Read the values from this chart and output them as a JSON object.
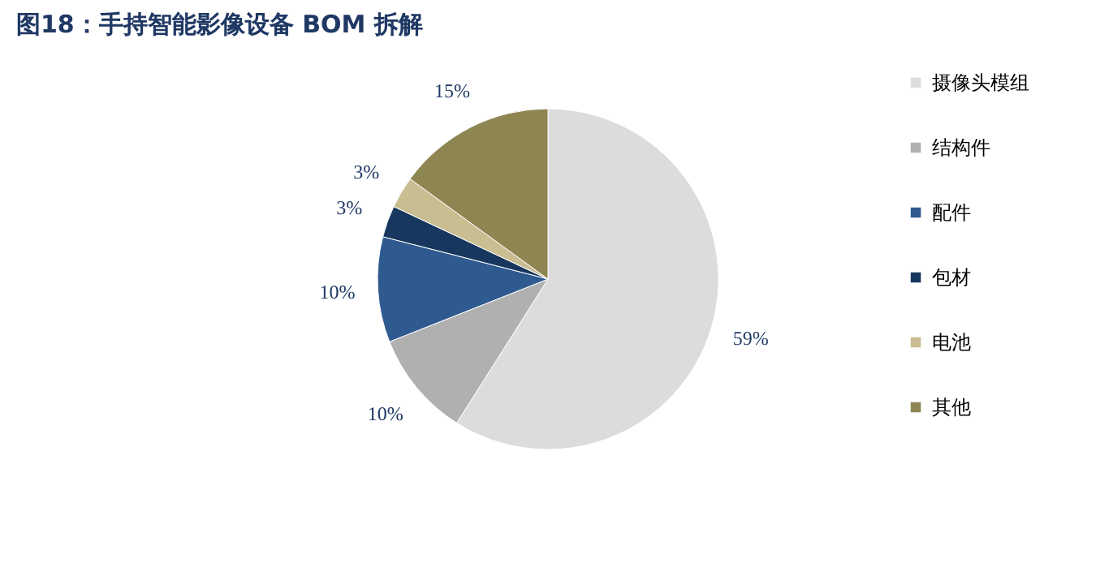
{
  "chart_data": {
    "type": "pie",
    "title": "图18：手持智能影像设备 BOM 拆解",
    "categories": [
      "摄像头模组",
      "结构件",
      "配件",
      "包材",
      "电池",
      "其他"
    ],
    "values": [
      59,
      10,
      10,
      3,
      3,
      15
    ],
    "colors": [
      "#dcdcdc",
      "#b0b0b0",
      "#2f5a90",
      "#17375e",
      "#c9bd92",
      "#8e8652"
    ],
    "value_labels": [
      "59%",
      "10%",
      "10%",
      "3%",
      "3%",
      "15%"
    ],
    "legend": "right"
  }
}
